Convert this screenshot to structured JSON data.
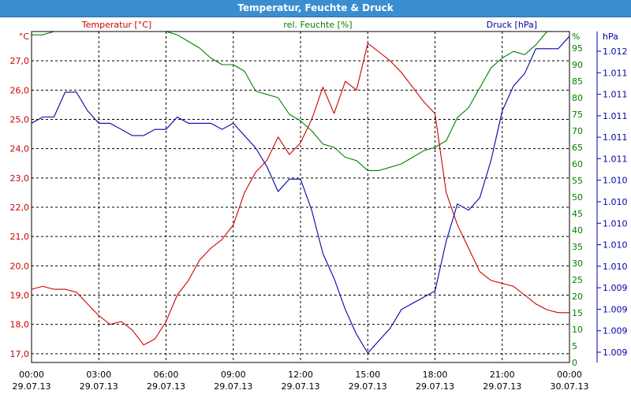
{
  "window": {
    "title": "Temperatur, Feuchte & Druck"
  },
  "chart_data": {
    "type": "line",
    "title": "Temperatur, Feuchte & Druck",
    "x_ticks": [
      {
        "time": "00:00",
        "date": "29.07.13"
      },
      {
        "time": "03:00",
        "date": "29.07.13"
      },
      {
        "time": "06:00",
        "date": "29.07.13"
      },
      {
        "time": "09:00",
        "date": "29.07.13"
      },
      {
        "time": "12:00",
        "date": "29.07.13"
      },
      {
        "time": "15:00",
        "date": "29.07.13"
      },
      {
        "time": "18:00",
        "date": "29.07.13"
      },
      {
        "time": "21:00",
        "date": "29.07.13"
      },
      {
        "time": "00:00",
        "date": "30.07.13"
      }
    ],
    "xlim_hours": [
      0,
      24
    ],
    "axes": {
      "temperature": {
        "unit": "°C",
        "ylim": [
          16.7,
          28.0
        ],
        "ticks": [
          "17,0",
          "18,0",
          "19,0",
          "20,0",
          "21,0",
          "22,0",
          "23,0",
          "24,0",
          "25,0",
          "26,0",
          "27,0"
        ],
        "tick_values": [
          17,
          18,
          19,
          20,
          21,
          22,
          23,
          24,
          25,
          26,
          27
        ],
        "color": "#cc0000"
      },
      "humidity": {
        "unit": "%",
        "ylim": [
          0,
          100
        ],
        "ticks": [
          "0",
          "5",
          "10",
          "15",
          "20",
          "25",
          "30",
          "35",
          "40",
          "45",
          "50",
          "55",
          "60",
          "65",
          "70",
          "75",
          "80",
          "85",
          "90",
          "95"
        ],
        "tick_values": [
          0,
          5,
          10,
          15,
          20,
          25,
          30,
          35,
          40,
          45,
          50,
          55,
          60,
          65,
          70,
          75,
          80,
          85,
          90,
          95
        ],
        "color": "#008000"
      },
      "pressure": {
        "unit": "hPa",
        "ticks": [
          "1.012",
          "1.011",
          "1.011",
          "1.011",
          "1.011",
          "1.011",
          "1.010",
          "1.010",
          "1.010",
          "1.010",
          "1.010",
          "1.009",
          "1.009",
          "1.009",
          "1.009"
        ],
        "color": "#0000aa"
      }
    },
    "legend": {
      "temperature": "Temperatur [°C]",
      "humidity": "rel. Feuchte [%]",
      "pressure": "Druck [hPa]"
    },
    "grid": true,
    "series": [
      {
        "name": "Temperatur [°C]",
        "axis": "temperature",
        "color": "#cc0000",
        "x": [
          0,
          0.5,
          1,
          1.5,
          2,
          2.5,
          3,
          3.5,
          4,
          4.5,
          5,
          5.5,
          6,
          6.5,
          7,
          7.5,
          8,
          8.5,
          9,
          9.5,
          10,
          10.5,
          11,
          11.5,
          12,
          12.5,
          13,
          13.5,
          14,
          14.5,
          15,
          15.5,
          16,
          16.5,
          17,
          17.5,
          18,
          18.5,
          19,
          19.5,
          20,
          20.5,
          21,
          21.5,
          22,
          22.5,
          23,
          23.5,
          24
        ],
        "y": [
          19.2,
          19.3,
          19.2,
          19.2,
          19.1,
          18.7,
          18.3,
          18.0,
          18.1,
          17.8,
          17.3,
          17.5,
          18.1,
          19.0,
          19.5,
          20.2,
          20.6,
          20.9,
          21.4,
          22.5,
          23.2,
          23.6,
          24.4,
          23.8,
          24.2,
          25.0,
          26.1,
          25.2,
          26.3,
          26.0,
          27.6,
          27.3,
          27.0,
          26.6,
          26.1,
          25.6,
          25.2,
          22.5,
          21.4,
          20.6,
          19.8,
          19.5,
          19.4,
          19.3,
          19.0,
          18.7,
          18.5,
          18.4,
          18.4
        ]
      },
      {
        "name": "rel. Feuchte [%]",
        "axis": "humidity",
        "color": "#008000",
        "x": [
          0,
          0.5,
          1,
          1.5,
          2,
          2.5,
          3,
          3.5,
          4,
          4.5,
          5,
          5.5,
          6,
          6.5,
          7,
          7.5,
          8,
          8.5,
          9,
          9.5,
          10,
          10.5,
          11,
          11.5,
          12,
          12.5,
          13,
          13.5,
          14,
          14.5,
          15,
          15.5,
          16,
          16.5,
          17,
          17.5,
          18,
          18.5,
          19,
          19.5,
          20,
          20.5,
          21,
          21.5,
          22,
          22.5,
          23,
          23.5,
          24
        ],
        "y": [
          99,
          99,
          100,
          100,
          100,
          101,
          101,
          101,
          101,
          101,
          101,
          101,
          100,
          99,
          97,
          95,
          92,
          90,
          90,
          88,
          82,
          81,
          80,
          75,
          73,
          70,
          66,
          65,
          62,
          61,
          58,
          58,
          59,
          60,
          62,
          64,
          65,
          67,
          74,
          77,
          83,
          89,
          92,
          94,
          93,
          96,
          100,
          101,
          101
        ]
      },
      {
        "name": "Druck [hPa]",
        "axis": "pressure",
        "color": "#0000aa",
        "x": [
          0,
          0.5,
          1,
          1.5,
          2,
          2.5,
          3,
          3.5,
          4,
          4.5,
          5,
          5.5,
          6,
          6.5,
          7,
          7.5,
          8,
          8.5,
          9,
          9.5,
          10,
          10.5,
          11,
          11.5,
          12,
          12.5,
          13,
          13.5,
          14,
          14.5,
          15,
          15.5,
          16,
          16.5,
          17,
          17.5,
          18,
          18.5,
          19,
          19.5,
          20,
          20.5,
          21,
          21.5,
          22,
          22.5,
          23,
          23.5,
          24
        ],
        "y": [
          1.011,
          1.0111,
          1.0111,
          1.0115,
          1.0115,
          1.0112,
          1.011,
          1.011,
          1.0109,
          1.0108,
          1.0108,
          1.0109,
          1.0109,
          1.0111,
          1.011,
          1.011,
          1.011,
          1.0109,
          1.011,
          1.0108,
          1.0106,
          1.0103,
          1.0099,
          1.0101,
          1.0101,
          1.0096,
          1.0089,
          1.0085,
          1.008,
          1.0076,
          1.0073,
          1.0075,
          1.0077,
          1.008,
          1.0081,
          1.0082,
          1.0083,
          1.0091,
          1.0097,
          1.0096,
          1.0098,
          1.0104,
          1.0112,
          1.0116,
          1.0118,
          1.0122,
          1.0122,
          1.0122,
          1.0124
        ]
      }
    ]
  }
}
